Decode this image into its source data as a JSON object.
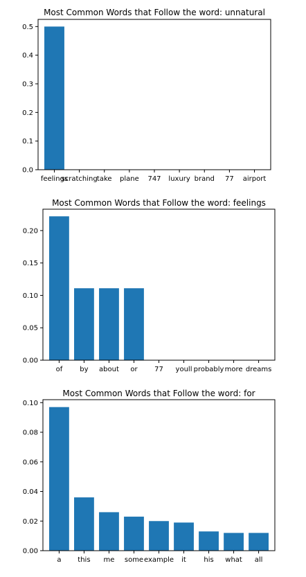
{
  "chart_data": [
    {
      "type": "bar",
      "title": "Most Common Words that Follow the word: unnatural",
      "categories": [
        "feelings",
        "scratching",
        "take",
        "plane",
        "747",
        "luxury",
        "brand",
        "77",
        "airport"
      ],
      "values": [
        0.5,
        0,
        0,
        0,
        0,
        0,
        0,
        0,
        0
      ],
      "yticks": [
        "0.0",
        "0.1",
        "0.2",
        "0.3",
        "0.4",
        "0.5"
      ],
      "ylim": [
        0,
        0.525
      ],
      "color": "#1f77b4"
    },
    {
      "type": "bar",
      "title": "Most Common Words that Follow the word: feelings",
      "categories": [
        "of",
        "by",
        "about",
        "or",
        "77",
        "youll",
        "probably",
        "more",
        "dreams"
      ],
      "values": [
        0.222,
        0.111,
        0.111,
        0.111,
        0,
        0,
        0,
        0,
        0
      ],
      "yticks": [
        "0.00",
        "0.05",
        "0.10",
        "0.15",
        "0.20"
      ],
      "ylim": [
        0,
        0.233
      ],
      "color": "#1f77b4"
    },
    {
      "type": "bar",
      "title": "Most Common Words that Follow the word: for",
      "categories": [
        "a",
        "this",
        "me",
        "some",
        "example",
        "it",
        "his",
        "what",
        "all"
      ],
      "values": [
        0.097,
        0.036,
        0.026,
        0.023,
        0.02,
        0.019,
        0.013,
        0.012,
        0.012
      ],
      "yticks": [
        "0.00",
        "0.02",
        "0.04",
        "0.06",
        "0.08",
        "0.10"
      ],
      "ylim": [
        0,
        0.102
      ],
      "color": "#1f77b4"
    }
  ]
}
